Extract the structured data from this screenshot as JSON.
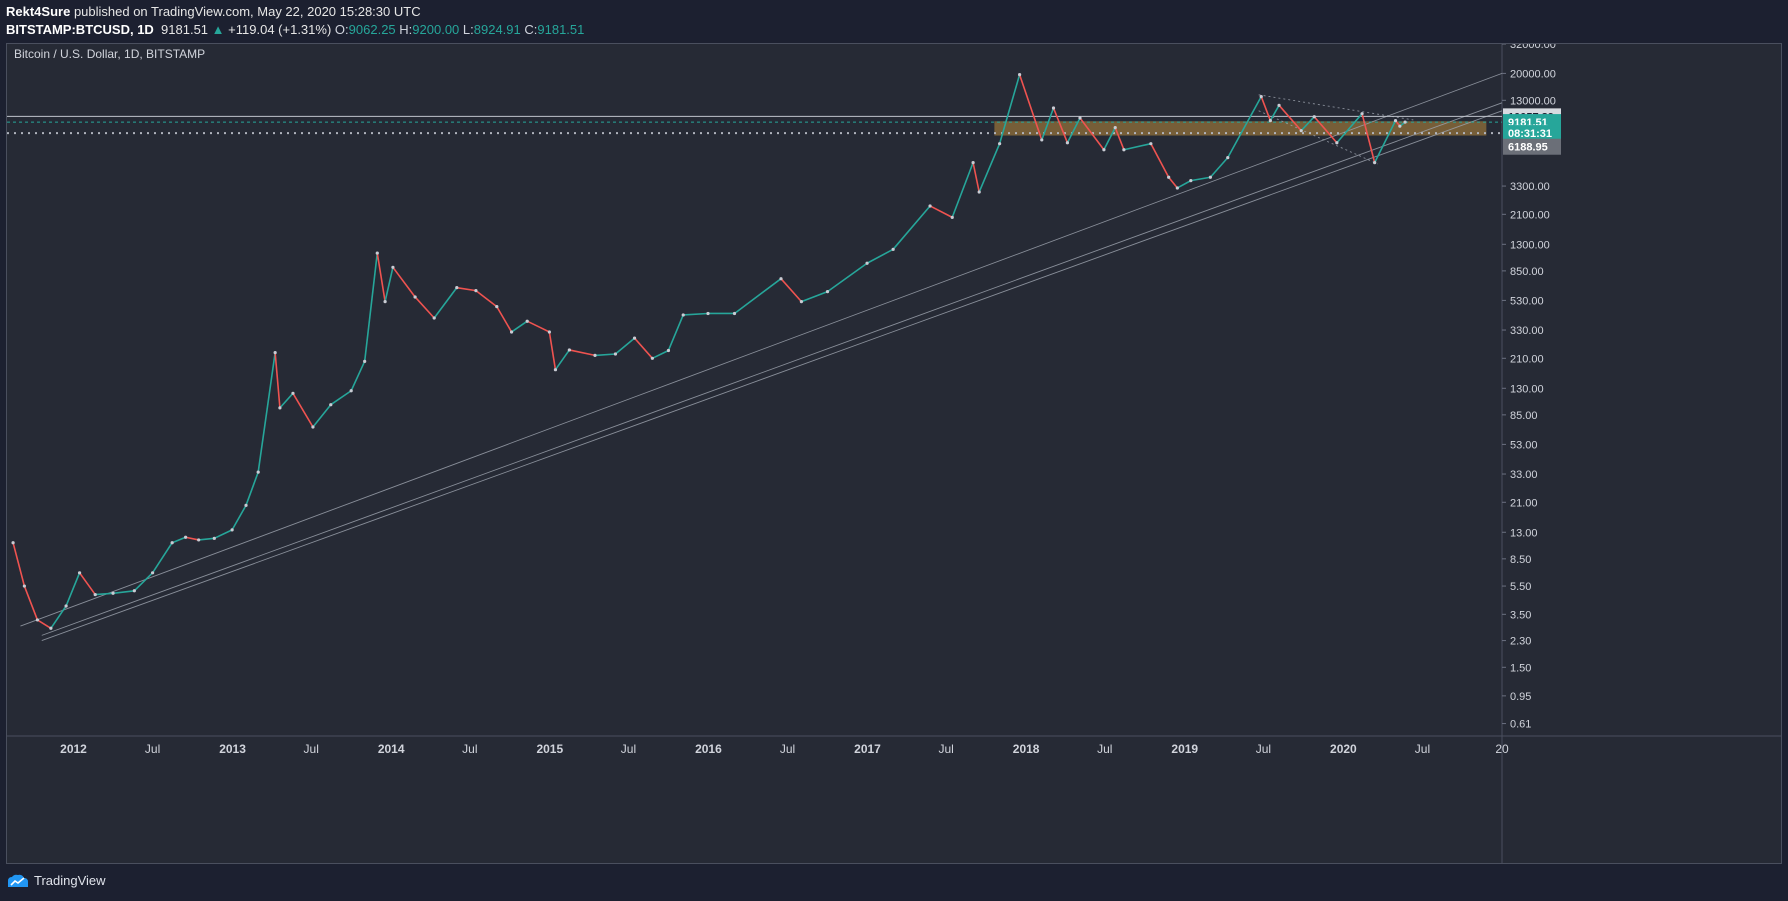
{
  "header": {
    "author": "Rekt4Sure",
    "published_text": "published on TradingView.com, May 22, 2020 15:28:30 UTC",
    "symbol": "BITSTAMP:BTCUSD, 1D",
    "last": "9181.51",
    "change": "+119.04 (+1.31%)",
    "open_label": "O:",
    "open": "9062.25",
    "high_label": "H:",
    "high": "9200.00",
    "low_label": "L:",
    "low": "8924.91",
    "close_label": "C:",
    "close": "9181.51"
  },
  "footer": {
    "brand": "TradingView"
  },
  "colors": {
    "background": "#262a35",
    "up": "#26a69a",
    "down": "#ef5350",
    "zone": "#b8893a",
    "line": "#9aa0ab"
  },
  "chart_data": {
    "type": "line",
    "title": "Bitcoin / U.S. Dollar, 1D, BITSTAMP",
    "y_scale": "log",
    "ylim": [
      0.5,
      32000
    ],
    "xlim": [
      "2011-08-01",
      "2020-12-31"
    ],
    "x_ticks": [
      {
        "label": "2012",
        "date": "2012-01-01"
      },
      {
        "label": "Jul",
        "date": "2012-07-01"
      },
      {
        "label": "2013",
        "date": "2013-01-01"
      },
      {
        "label": "Jul",
        "date": "2013-07-01"
      },
      {
        "label": "2014",
        "date": "2014-01-01"
      },
      {
        "label": "Jul",
        "date": "2014-07-01"
      },
      {
        "label": "2015",
        "date": "2015-01-01"
      },
      {
        "label": "Jul",
        "date": "2015-07-01"
      },
      {
        "label": "2016",
        "date": "2016-01-01"
      },
      {
        "label": "Jul",
        "date": "2016-07-01"
      },
      {
        "label": "2017",
        "date": "2017-01-01"
      },
      {
        "label": "Jul",
        "date": "2017-07-01"
      },
      {
        "label": "2018",
        "date": "2018-01-01"
      },
      {
        "label": "Jul",
        "date": "2018-07-01"
      },
      {
        "label": "2019",
        "date": "2019-01-01"
      },
      {
        "label": "Jul",
        "date": "2019-07-01"
      },
      {
        "label": "2020",
        "date": "2020-01-01"
      },
      {
        "label": "Jul",
        "date": "2020-07-01"
      },
      {
        "label": "20",
        "date": "2020-12-31"
      }
    ],
    "y_ticks": [
      {
        "label": "32000.00",
        "value": 32000
      },
      {
        "label": "20000.00",
        "value": 20000
      },
      {
        "label": "13000.00",
        "value": 13000
      },
      {
        "label": "3300.00",
        "value": 3300
      },
      {
        "label": "2100.00",
        "value": 2100
      },
      {
        "label": "1300.00",
        "value": 1300
      },
      {
        "label": "850.00",
        "value": 850
      },
      {
        "label": "530.00",
        "value": 530
      },
      {
        "label": "330.00",
        "value": 330
      },
      {
        "label": "210.00",
        "value": 210
      },
      {
        "label": "130.00",
        "value": 130
      },
      {
        "label": "85.00",
        "value": 85
      },
      {
        "label": "53.00",
        "value": 53
      },
      {
        "label": "33.00",
        "value": 33
      },
      {
        "label": "21.00",
        "value": 21
      },
      {
        "label": "13.00",
        "value": 13
      },
      {
        "label": "8.50",
        "value": 8.5
      },
      {
        "label": "5.50",
        "value": 5.5
      },
      {
        "label": "3.50",
        "value": 3.5
      },
      {
        "label": "2.30",
        "value": 2.3
      },
      {
        "label": "1.50",
        "value": 1.5
      },
      {
        "label": "0.95",
        "value": 0.95
      },
      {
        "label": "0.61",
        "value": 0.61
      }
    ],
    "price_labels": [
      {
        "label": "10057.89",
        "value": 10057.89,
        "style": "line"
      },
      {
        "label": "9181.51",
        "value": 9181.51,
        "style": "last"
      },
      {
        "label": "08:31:31",
        "value": 7700,
        "style": "countdown"
      },
      {
        "label": "6188.95",
        "value": 6188.95,
        "style": "gray"
      }
    ],
    "series": [
      {
        "values": [
          [
            "2011-08-15",
            11
          ],
          [
            "2011-09-10",
            5.5
          ],
          [
            "2011-10-10",
            3.2
          ],
          [
            "2011-11-10",
            2.8
          ],
          [
            "2011-12-15",
            4.0
          ],
          [
            "2012-01-15",
            6.8
          ],
          [
            "2012-02-20",
            4.8
          ],
          [
            "2012-04-01",
            4.9
          ],
          [
            "2012-05-20",
            5.1
          ],
          [
            "2012-07-01",
            6.8
          ],
          [
            "2012-08-15",
            11.0
          ],
          [
            "2012-09-15",
            12.0
          ],
          [
            "2012-10-15",
            11.5
          ],
          [
            "2012-11-20",
            11.8
          ],
          [
            "2012-12-31",
            13.5
          ],
          [
            "2013-02-01",
            20
          ],
          [
            "2013-03-01",
            34
          ],
          [
            "2013-04-09",
            230
          ],
          [
            "2013-04-20",
            95
          ],
          [
            "2013-05-20",
            120
          ],
          [
            "2013-07-05",
            70
          ],
          [
            "2013-08-15",
            100
          ],
          [
            "2013-10-01",
            125
          ],
          [
            "2013-11-01",
            200
          ],
          [
            "2013-11-30",
            1130
          ],
          [
            "2013-12-18",
            520
          ],
          [
            "2014-01-05",
            900
          ],
          [
            "2014-02-25",
            560
          ],
          [
            "2014-04-10",
            400
          ],
          [
            "2014-06-01",
            650
          ],
          [
            "2014-07-15",
            620
          ],
          [
            "2014-09-01",
            480
          ],
          [
            "2014-10-05",
            320
          ],
          [
            "2014-11-10",
            380
          ],
          [
            "2014-12-31",
            320
          ],
          [
            "2015-01-14",
            175
          ],
          [
            "2015-02-15",
            240
          ],
          [
            "2015-04-15",
            220
          ],
          [
            "2015-06-01",
            225
          ],
          [
            "2015-07-15",
            290
          ],
          [
            "2015-08-25",
            210
          ],
          [
            "2015-10-01",
            238
          ],
          [
            "2015-11-04",
            420
          ],
          [
            "2015-12-31",
            430
          ],
          [
            "2016-03-01",
            430
          ],
          [
            "2016-06-16",
            750
          ],
          [
            "2016-08-02",
            520
          ],
          [
            "2016-10-01",
            610
          ],
          [
            "2016-12-31",
            960
          ],
          [
            "2017-03-01",
            1200
          ],
          [
            "2017-05-25",
            2400
          ],
          [
            "2017-07-15",
            2000
          ],
          [
            "2017-09-01",
            4800
          ],
          [
            "2017-09-15",
            3000
          ],
          [
            "2017-11-01",
            6500
          ],
          [
            "2017-12-17",
            19600
          ],
          [
            "2018-02-06",
            6900
          ],
          [
            "2018-03-05",
            11500
          ],
          [
            "2018-04-06",
            6600
          ],
          [
            "2018-05-05",
            9800
          ],
          [
            "2018-06-29",
            5900
          ],
          [
            "2018-07-25",
            8400
          ],
          [
            "2018-08-14",
            5900
          ],
          [
            "2018-10-15",
            6500
          ],
          [
            "2018-11-25",
            3800
          ],
          [
            "2018-12-15",
            3200
          ],
          [
            "2019-01-15",
            3600
          ],
          [
            "2019-03-01",
            3800
          ],
          [
            "2019-04-10",
            5200
          ],
          [
            "2019-06-26",
            13800
          ],
          [
            "2019-07-17",
            9400
          ],
          [
            "2019-08-06",
            12000
          ],
          [
            "2019-09-26",
            8000
          ],
          [
            "2019-10-26",
            10000
          ],
          [
            "2019-12-17",
            6600
          ],
          [
            "2020-02-13",
            10500
          ],
          [
            "2020-03-13",
            4800
          ],
          [
            "2020-04-30",
            9400
          ],
          [
            "2020-05-10",
            8600
          ],
          [
            "2020-05-22",
            9181.51
          ]
        ]
      }
    ],
    "zone": {
      "from_date": "2017-10-20",
      "to_date": "2020-11-25",
      "low": 7400,
      "high": 9300
    },
    "trendlines": [
      {
        "from": [
          "2011-09-01",
          2.9
        ],
        "to": [
          "2020-12-31",
          20000
        ]
      },
      {
        "from": [
          "2011-10-20",
          2.3
        ],
        "to": [
          "2020-12-31",
          11000
        ]
      },
      {
        "from": [
          "2011-10-20",
          2.5
        ],
        "to": [
          "2020-12-31",
          12500
        ]
      },
      {
        "from": [
          "2019-06-20",
          14200
        ],
        "to": [
          "2020-06-10",
          9500
        ],
        "style": "dotted"
      },
      {
        "from": [
          "2019-06-20",
          11000
        ],
        "to": [
          "2020-03-20",
          4700
        ],
        "style": "dotted"
      }
    ],
    "h_lines": [
      {
        "value": 10057.89,
        "style": "solid"
      },
      {
        "value": 9181.51,
        "style": "dashed"
      },
      {
        "value": 7700,
        "style": "dotted"
      }
    ]
  }
}
